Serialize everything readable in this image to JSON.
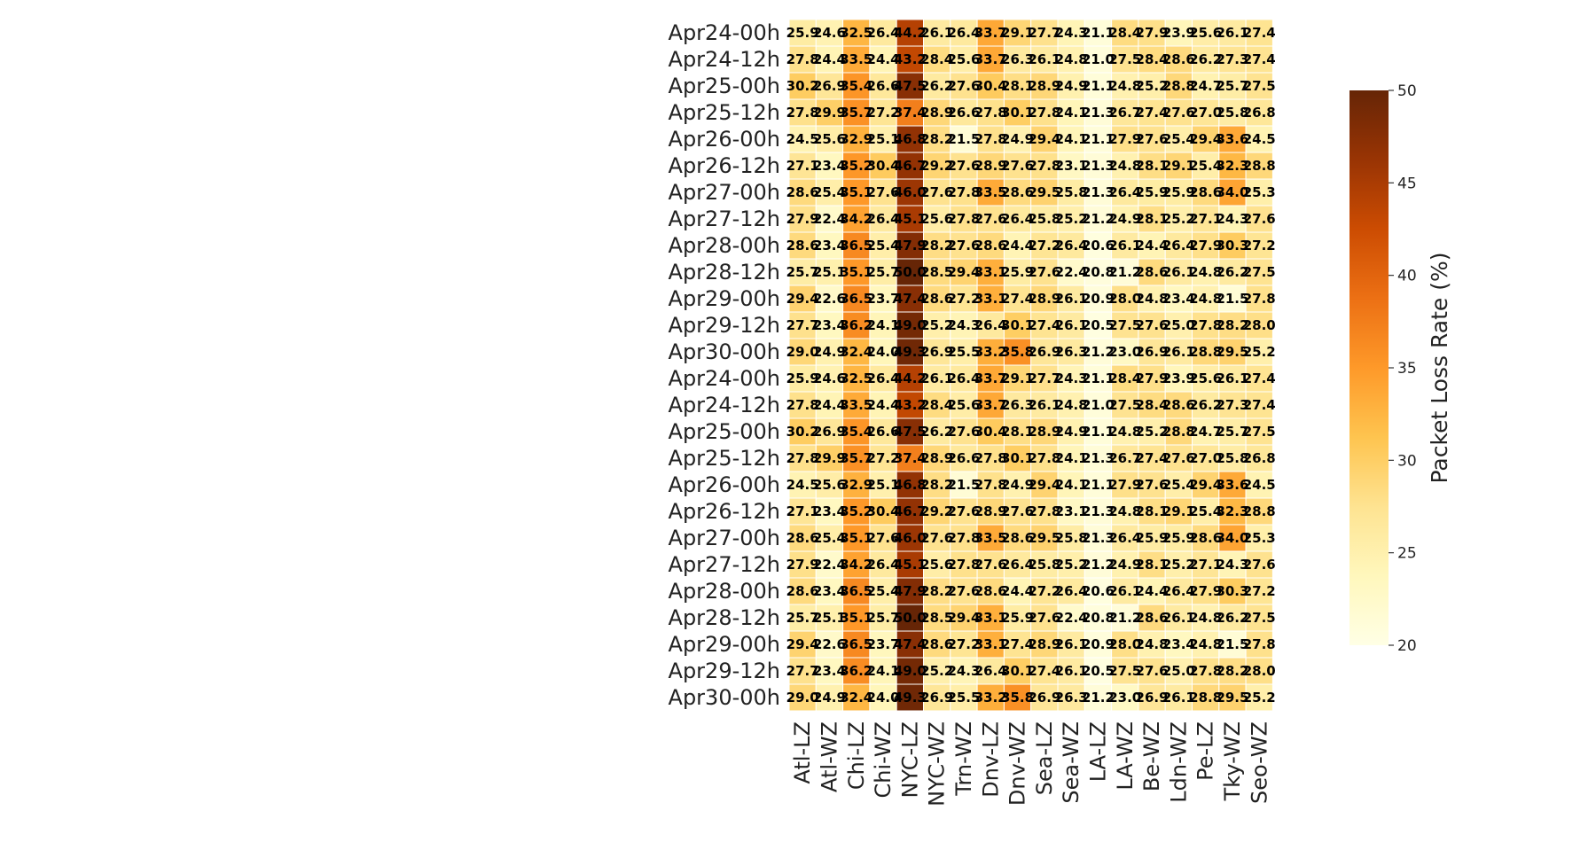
{
  "chart_data": {
    "type": "heatmap",
    "title": "",
    "xlabel": "",
    "ylabel": "",
    "colorbar": {
      "label": "Packet Loss Rate (%)",
      "range": [
        20,
        50
      ],
      "ticks": [
        "20",
        "25",
        "30",
        "35",
        "40",
        "45",
        "50"
      ],
      "colormap": "YlOrBr",
      "stops": [
        "#ffffe5",
        "#fff7bc",
        "#fee391",
        "#fec44f",
        "#fe9929",
        "#ec7014",
        "#cc4c02",
        "#993404",
        "#662506"
      ]
    },
    "x_labels": [
      "Atl-LZ",
      "Atl-WZ",
      "Chi-LZ",
      "Chi-WZ",
      "NYC-LZ",
      "NYC-WZ",
      "Trn-WZ",
      "Dnv-LZ",
      "Dnv-WZ",
      "Sea-LZ",
      "Sea-WZ",
      "LA-LZ",
      "LA-WZ",
      "Be-WZ",
      "Ldn-WZ",
      "Pe-LZ",
      "Tky-WZ",
      "Seo-WZ"
    ],
    "y_labels": [
      "Apr24-00h",
      "Apr24-12h",
      "Apr25-00h",
      "Apr25-12h",
      "Apr26-00h",
      "Apr26-12h",
      "Apr27-00h",
      "Apr27-12h",
      "Apr28-00h",
      "Apr28-12h",
      "Apr29-00h",
      "Apr29-12h",
      "Apr30-00h",
      "Apr24-00h",
      "Apr24-12h",
      "Apr25-00h",
      "Apr25-12h",
      "Apr26-00h",
      "Apr26-12h",
      "Apr27-00h",
      "Apr27-12h",
      "Apr28-00h",
      "Apr28-12h",
      "Apr29-00h",
      "Apr29-12h",
      "Apr30-00h"
    ],
    "values": [
      [
        "25.9",
        "24.6",
        "32.5",
        "26.4",
        "44.2",
        "26.1",
        "26.4",
        "33.7",
        "29.1",
        "27.7",
        "24.3",
        "21.1",
        "28.4",
        "27.9",
        "23.9",
        "25.6",
        "26.1",
        "27.4"
      ],
      [
        "27.8",
        "24.4",
        "33.5",
        "24.4",
        "43.2",
        "28.4",
        "25.6",
        "33.7",
        "26.3",
        "26.1",
        "24.8",
        "21.0",
        "27.5",
        "28.4",
        "28.6",
        "26.2",
        "27.3",
        "27.4"
      ],
      [
        "30.2",
        "26.9",
        "35.4",
        "26.6",
        "47.5",
        "26.2",
        "27.6",
        "30.4",
        "28.1",
        "28.9",
        "24.9",
        "21.1",
        "24.8",
        "25.2",
        "28.8",
        "24.7",
        "25.7",
        "27.5"
      ],
      [
        "27.8",
        "29.9",
        "35.7",
        "27.2",
        "37.4",
        "28.9",
        "26.6",
        "27.8",
        "30.1",
        "27.8",
        "24.1",
        "21.3",
        "26.7",
        "27.4",
        "27.6",
        "27.0",
        "25.8",
        "26.8"
      ],
      [
        "24.5",
        "25.6",
        "32.9",
        "25.1",
        "46.8",
        "28.2",
        "21.5",
        "27.8",
        "24.9",
        "29.4",
        "24.1",
        "21.1",
        "27.9",
        "27.6",
        "25.4",
        "29.4",
        "33.6",
        "24.5"
      ],
      [
        "27.1",
        "23.4",
        "35.2",
        "30.4",
        "46.7",
        "29.2",
        "27.6",
        "28.9",
        "27.6",
        "27.8",
        "23.1",
        "21.3",
        "24.8",
        "28.1",
        "29.1",
        "25.4",
        "32.3",
        "28.8"
      ],
      [
        "28.6",
        "25.4",
        "35.1",
        "27.6",
        "46.0",
        "27.6",
        "27.8",
        "33.5",
        "28.6",
        "29.5",
        "25.8",
        "21.3",
        "26.4",
        "25.9",
        "25.9",
        "28.6",
        "34.0",
        "25.3"
      ],
      [
        "27.9",
        "22.4",
        "34.2",
        "26.4",
        "45.1",
        "25.6",
        "27.8",
        "27.6",
        "26.4",
        "25.8",
        "25.2",
        "21.2",
        "24.9",
        "28.1",
        "25.2",
        "27.1",
        "24.3",
        "27.6"
      ],
      [
        "28.6",
        "23.4",
        "36.5",
        "25.4",
        "47.9",
        "28.2",
        "27.6",
        "28.6",
        "24.4",
        "27.2",
        "26.4",
        "20.6",
        "26.1",
        "24.4",
        "26.4",
        "27.9",
        "30.3",
        "27.2"
      ],
      [
        "25.7",
        "25.1",
        "35.1",
        "25.7",
        "50.0",
        "28.5",
        "29.4",
        "33.1",
        "25.9",
        "27.6",
        "22.4",
        "20.8",
        "21.2",
        "28.6",
        "26.1",
        "24.8",
        "26.2",
        "27.5"
      ],
      [
        "29.4",
        "22.6",
        "36.5",
        "23.7",
        "47.4",
        "28.6",
        "27.2",
        "33.1",
        "27.4",
        "28.9",
        "26.1",
        "20.9",
        "28.0",
        "24.8",
        "23.4",
        "24.8",
        "21.5",
        "27.8"
      ],
      [
        "27.7",
        "23.4",
        "36.2",
        "24.1",
        "49.0",
        "25.2",
        "24.3",
        "26.4",
        "30.1",
        "27.4",
        "26.1",
        "20.5",
        "27.5",
        "27.6",
        "25.0",
        "27.8",
        "28.2",
        "28.0"
      ],
      [
        "29.0",
        "24.9",
        "32.4",
        "24.0",
        "49.3",
        "26.9",
        "25.5",
        "33.2",
        "35.8",
        "26.9",
        "26.3",
        "21.2",
        "23.0",
        "26.9",
        "26.1",
        "28.8",
        "29.5",
        "25.2"
      ],
      [
        "25.9",
        "24.6",
        "32.5",
        "26.4",
        "44.2",
        "26.1",
        "26.4",
        "33.7",
        "29.1",
        "27.7",
        "24.3",
        "21.1",
        "28.4",
        "27.9",
        "23.9",
        "25.6",
        "26.1",
        "27.4"
      ],
      [
        "27.8",
        "24.4",
        "33.5",
        "24.4",
        "43.2",
        "28.4",
        "25.6",
        "33.7",
        "26.3",
        "26.1",
        "24.8",
        "21.0",
        "27.5",
        "28.4",
        "28.6",
        "26.2",
        "27.3",
        "27.4"
      ],
      [
        "30.2",
        "26.9",
        "35.4",
        "26.6",
        "47.5",
        "26.2",
        "27.6",
        "30.4",
        "28.1",
        "28.9",
        "24.9",
        "21.1",
        "24.8",
        "25.2",
        "28.8",
        "24.7",
        "25.7",
        "27.5"
      ],
      [
        "27.8",
        "29.9",
        "35.7",
        "27.2",
        "37.4",
        "28.9",
        "26.6",
        "27.8",
        "30.1",
        "27.8",
        "24.1",
        "21.3",
        "26.7",
        "27.4",
        "27.6",
        "27.0",
        "25.8",
        "26.8"
      ],
      [
        "24.5",
        "25.6",
        "32.9",
        "25.1",
        "46.8",
        "28.2",
        "21.5",
        "27.8",
        "24.9",
        "29.4",
        "24.1",
        "21.1",
        "27.9",
        "27.6",
        "25.4",
        "29.4",
        "33.6",
        "24.5"
      ],
      [
        "27.1",
        "23.4",
        "35.2",
        "30.4",
        "46.7",
        "29.2",
        "27.6",
        "28.9",
        "27.6",
        "27.8",
        "23.1",
        "21.3",
        "24.8",
        "28.1",
        "29.1",
        "25.4",
        "32.3",
        "28.8"
      ],
      [
        "28.6",
        "25.4",
        "35.1",
        "27.6",
        "46.0",
        "27.6",
        "27.8",
        "33.5",
        "28.6",
        "29.5",
        "25.8",
        "21.3",
        "26.4",
        "25.9",
        "25.9",
        "28.6",
        "34.0",
        "25.3"
      ],
      [
        "27.9",
        "22.4",
        "34.2",
        "26.4",
        "45.1",
        "25.6",
        "27.8",
        "27.6",
        "26.4",
        "25.8",
        "25.2",
        "21.2",
        "24.9",
        "28.1",
        "25.2",
        "27.1",
        "24.3",
        "27.6"
      ],
      [
        "28.6",
        "23.4",
        "36.5",
        "25.4",
        "47.9",
        "28.2",
        "27.6",
        "28.6",
        "24.4",
        "27.2",
        "26.4",
        "20.6",
        "26.1",
        "24.4",
        "26.4",
        "27.9",
        "30.3",
        "27.2"
      ],
      [
        "25.7",
        "25.1",
        "35.1",
        "25.7",
        "50.0",
        "28.5",
        "29.4",
        "33.1",
        "25.9",
        "27.6",
        "22.4",
        "20.8",
        "21.2",
        "28.6",
        "26.1",
        "24.8",
        "26.2",
        "27.5"
      ],
      [
        "29.4",
        "22.6",
        "36.5",
        "23.7",
        "47.4",
        "28.6",
        "27.2",
        "33.1",
        "27.4",
        "28.9",
        "26.1",
        "20.9",
        "28.0",
        "24.8",
        "23.4",
        "24.8",
        "21.5",
        "27.8"
      ],
      [
        "27.7",
        "23.4",
        "36.2",
        "24.1",
        "49.0",
        "25.2",
        "24.3",
        "26.4",
        "30.1",
        "27.4",
        "26.1",
        "20.5",
        "27.5",
        "27.6",
        "25.0",
        "27.8",
        "28.2",
        "28.0"
      ],
      [
        "29.0",
        "24.9",
        "32.4",
        "24.0",
        "49.3",
        "26.9",
        "25.5",
        "33.2",
        "35.8",
        "26.9",
        "26.3",
        "21.2",
        "23.0",
        "26.9",
        "26.1",
        "28.8",
        "29.5",
        "25.2"
      ]
    ]
  }
}
